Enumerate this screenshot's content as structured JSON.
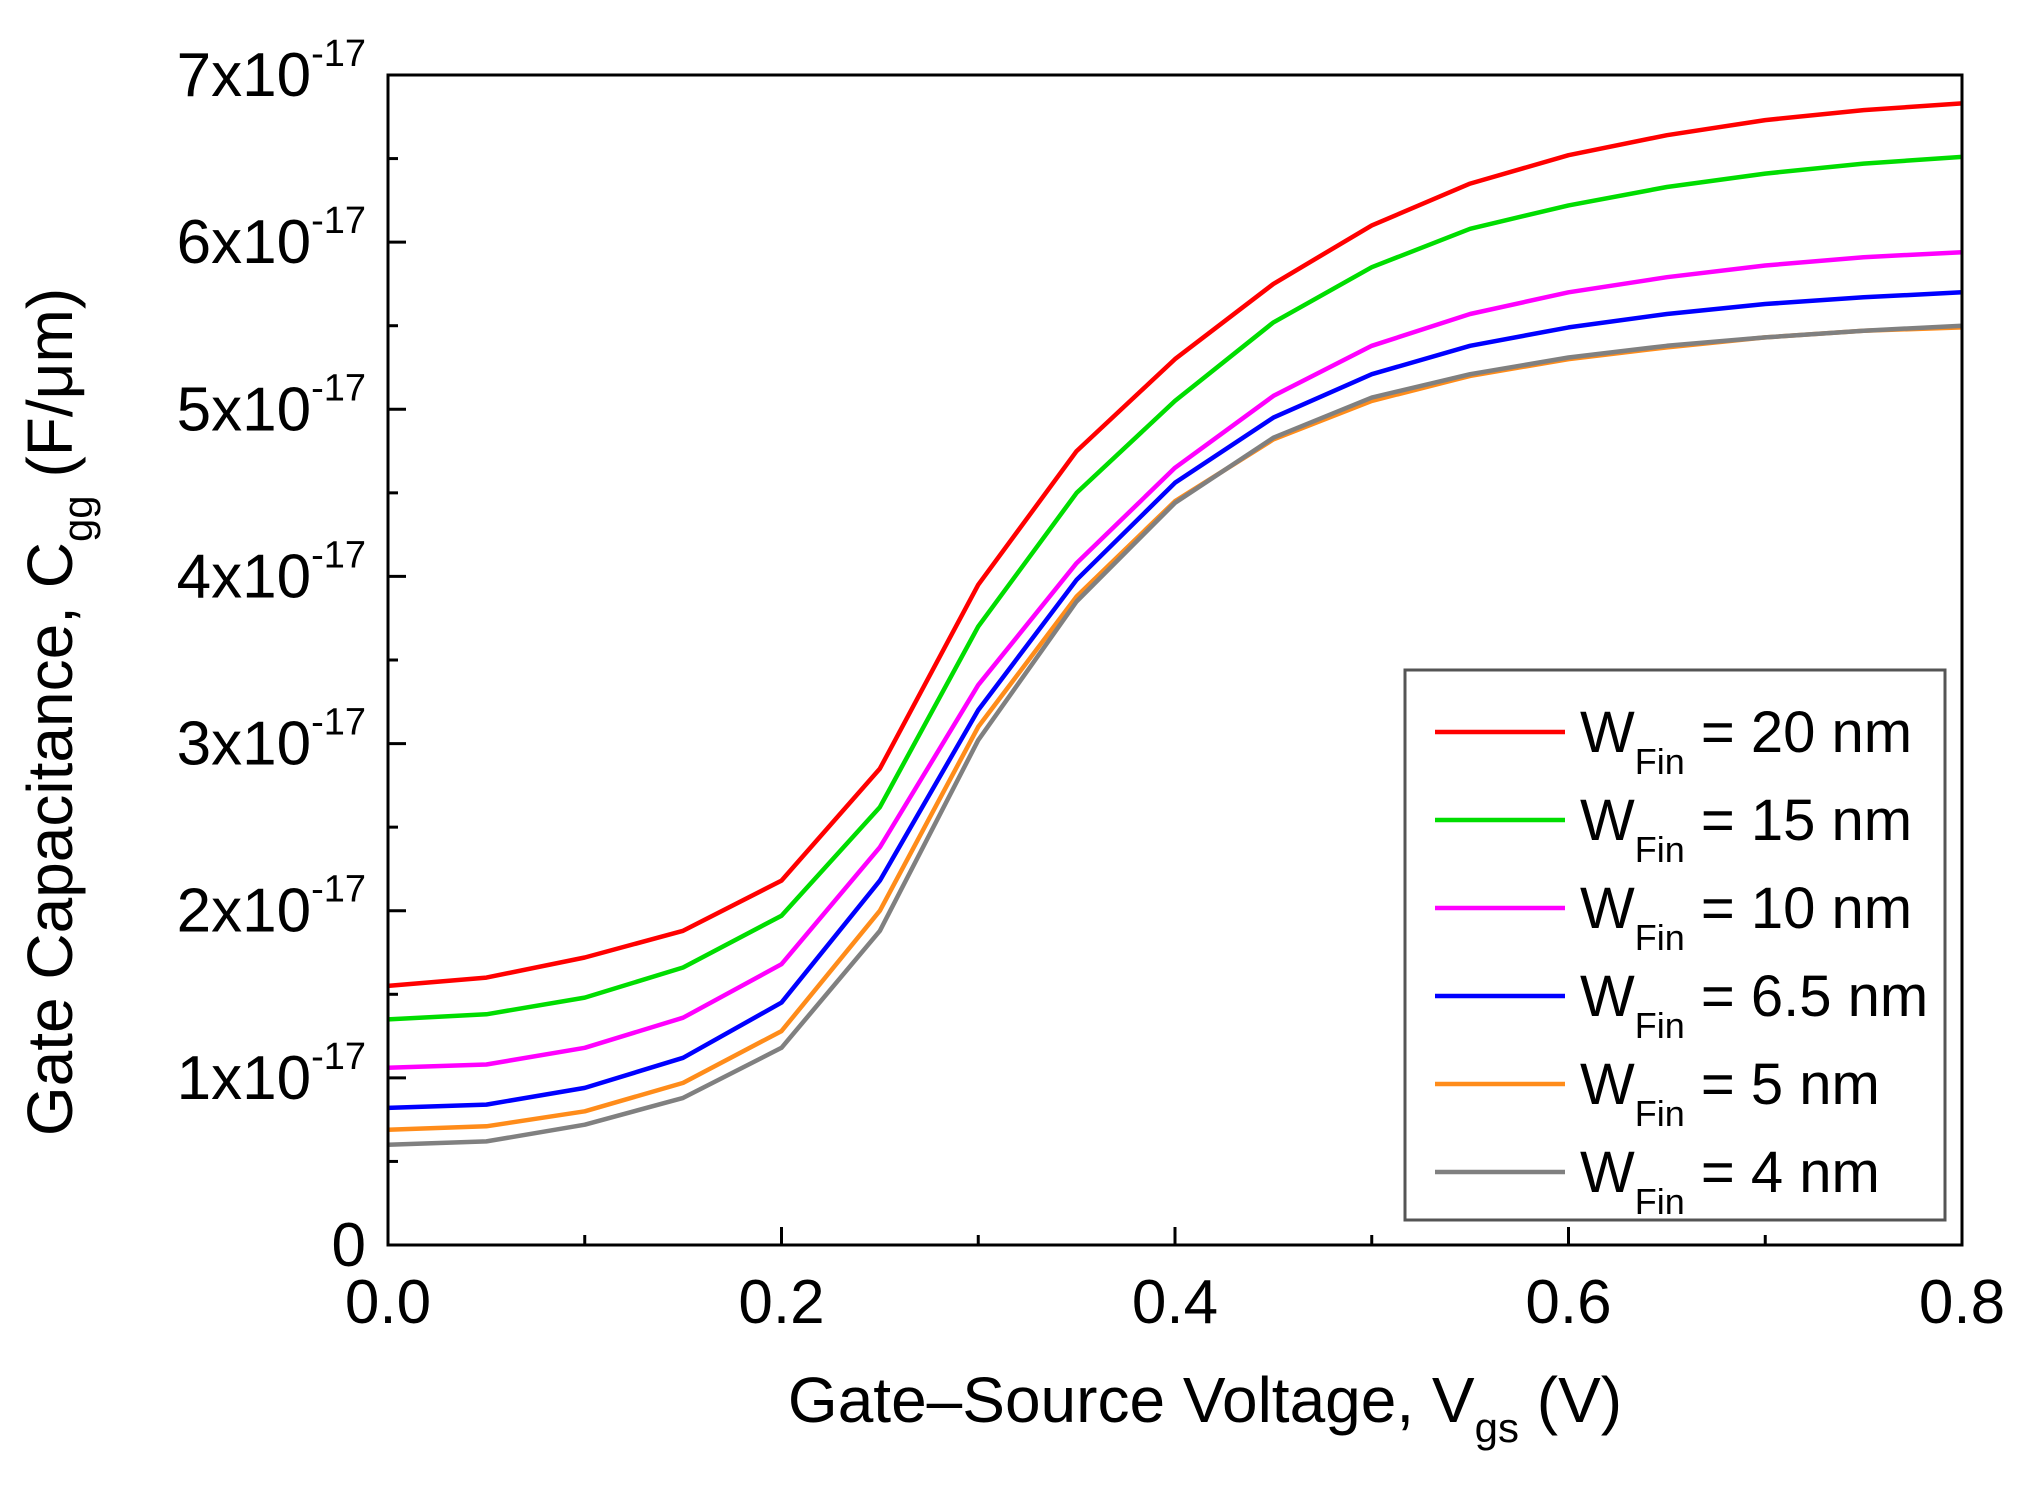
{
  "chart_data": {
    "type": "line",
    "xlabel": {
      "main": "Gate–Source Voltage, V",
      "sub": "gs",
      "unit": " (V)"
    },
    "ylabel": {
      "main": "Gate Capacitance, C",
      "sub": "gg",
      "unit": " (F/μm)"
    },
    "xlim": [
      0,
      0.8
    ],
    "ylim": [
      0,
      7e-17
    ],
    "grid": false,
    "legend_position": "bottom-right",
    "x_ticks": [
      {
        "value": 0.0,
        "label": "0.0"
      },
      {
        "value": 0.2,
        "label": "0.2"
      },
      {
        "value": 0.4,
        "label": "0.4"
      },
      {
        "value": 0.6,
        "label": "0.6"
      },
      {
        "value": 0.8,
        "label": "0.8"
      }
    ],
    "y_ticks": [
      {
        "value": 0,
        "mantissa": "0",
        "exp": ""
      },
      {
        "value": 1e-17,
        "mantissa": "1x10",
        "exp": "-17"
      },
      {
        "value": 2e-17,
        "mantissa": "2x10",
        "exp": "-17"
      },
      {
        "value": 3e-17,
        "mantissa": "3x10",
        "exp": "-17"
      },
      {
        "value": 4e-17,
        "mantissa": "4x10",
        "exp": "-17"
      },
      {
        "value": 5e-17,
        "mantissa": "5x10",
        "exp": "-17"
      },
      {
        "value": 6e-17,
        "mantissa": "6x10",
        "exp": "-17"
      },
      {
        "value": 7e-17,
        "mantissa": "7x10",
        "exp": "-17"
      }
    ],
    "x": [
      0.0,
      0.05,
      0.1,
      0.15,
      0.2,
      0.25,
      0.3,
      0.35,
      0.4,
      0.45,
      0.5,
      0.55,
      0.6,
      0.65,
      0.7,
      0.75,
      0.8
    ],
    "series": [
      {
        "name_main": "W",
        "name_sub": "Fin",
        "name_rest": " = 20 nm",
        "color": "#ff0000",
        "values": [
          1.55e-17,
          1.6e-17,
          1.72e-17,
          1.88e-17,
          2.18e-17,
          2.85e-17,
          3.95e-17,
          4.75e-17,
          5.3e-17,
          5.75e-17,
          6.1e-17,
          6.35e-17,
          6.52e-17,
          6.64e-17,
          6.73e-17,
          6.79e-17,
          6.83e-17
        ]
      },
      {
        "name_main": "W",
        "name_sub": "Fin",
        "name_rest": " = 15 nm",
        "color": "#00dd00",
        "values": [
          1.35e-17,
          1.38e-17,
          1.48e-17,
          1.66e-17,
          1.97e-17,
          2.62e-17,
          3.7e-17,
          4.5e-17,
          5.05e-17,
          5.52e-17,
          5.85e-17,
          6.08e-17,
          6.22e-17,
          6.33e-17,
          6.41e-17,
          6.47e-17,
          6.51e-17
        ]
      },
      {
        "name_main": "W",
        "name_sub": "Fin",
        "name_rest": " = 10 nm",
        "color": "#ff00ff",
        "values": [
          1.06e-17,
          1.08e-17,
          1.18e-17,
          1.36e-17,
          1.68e-17,
          2.38e-17,
          3.35e-17,
          4.08e-17,
          4.65e-17,
          5.08e-17,
          5.38e-17,
          5.57e-17,
          5.7e-17,
          5.79e-17,
          5.86e-17,
          5.91e-17,
          5.94e-17
        ]
      },
      {
        "name_main": "W",
        "name_sub": "Fin",
        "name_rest": " = 6.5 nm",
        "color": "#0000ff",
        "values": [
          8.2e-18,
          8.4e-18,
          9.4e-18,
          1.12e-17,
          1.45e-17,
          2.18e-17,
          3.2e-17,
          3.98e-17,
          4.56e-17,
          4.95e-17,
          5.21e-17,
          5.38e-17,
          5.49e-17,
          5.57e-17,
          5.63e-17,
          5.67e-17,
          5.7e-17
        ]
      },
      {
        "name_main": "W",
        "name_sub": "Fin",
        "name_rest": " = 5 nm",
        "color": "#ff8c1a",
        "values": [
          6.9e-18,
          7.1e-18,
          8e-18,
          9.7e-18,
          1.28e-17,
          2e-17,
          3.1e-17,
          3.88e-17,
          4.45e-17,
          4.82e-17,
          5.05e-17,
          5.2e-17,
          5.3e-17,
          5.37e-17,
          5.43e-17,
          5.47e-17,
          5.49e-17
        ]
      },
      {
        "name_main": "W",
        "name_sub": "Fin",
        "name_rest": " = 4 nm",
        "color": "#808080",
        "values": [
          6e-18,
          6.2e-18,
          7.2e-18,
          8.8e-18,
          1.18e-17,
          1.88e-17,
          3.02e-17,
          3.85e-17,
          4.44e-17,
          4.83e-17,
          5.07e-17,
          5.21e-17,
          5.31e-17,
          5.38e-17,
          5.43e-17,
          5.47e-17,
          5.5e-17
        ]
      }
    ]
  }
}
